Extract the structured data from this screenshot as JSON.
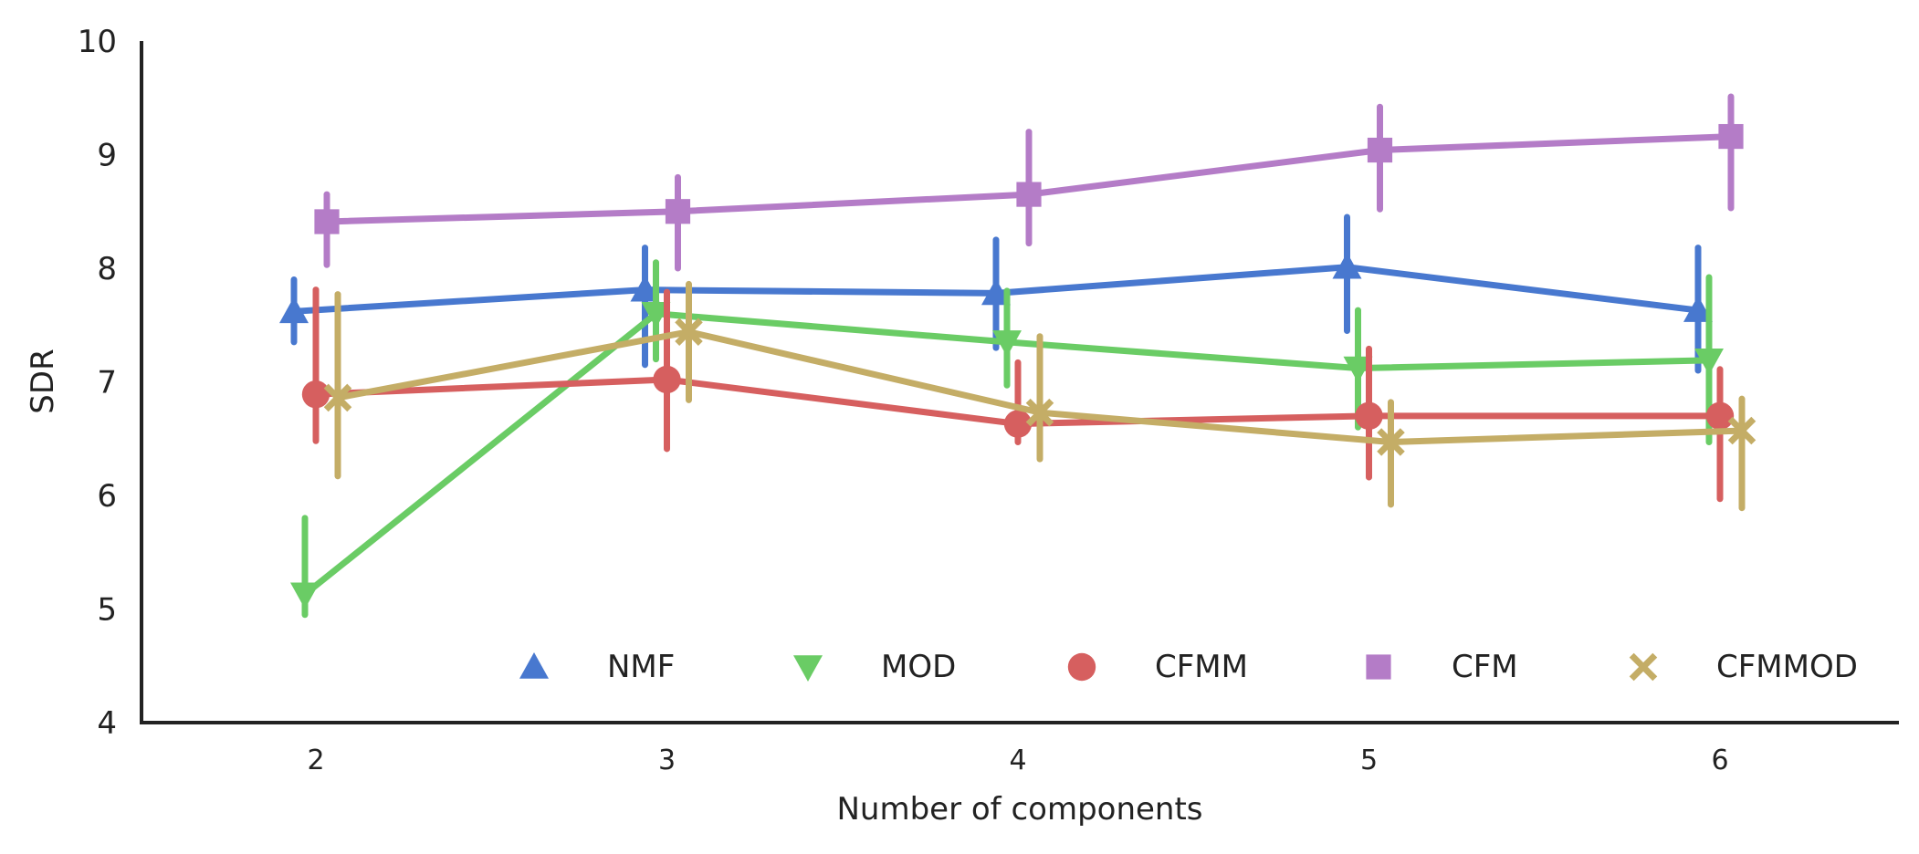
{
  "chart_data": {
    "type": "line",
    "xlabel": "Number of components",
    "ylabel": "SDR",
    "x": [
      2,
      3,
      4,
      5,
      6
    ],
    "ylim": [
      4,
      10
    ],
    "yticks": [
      4,
      5,
      6,
      7,
      8,
      9,
      10
    ],
    "grid": false,
    "legend_position": "bottom-right",
    "series": [
      {
        "name": "NMF",
        "marker": "triangle-up",
        "color": "#4878cf",
        "values": [
          7.62,
          7.81,
          7.78,
          8.01,
          7.63
        ],
        "err_low": [
          7.35,
          7.15,
          7.3,
          7.45,
          7.1
        ],
        "err_high": [
          7.9,
          8.18,
          8.25,
          8.45,
          8.18
        ]
      },
      {
        "name": "MOD",
        "marker": "triangle-down",
        "color": "#6acc65",
        "values": [
          5.13,
          7.6,
          7.35,
          7.12,
          7.19
        ],
        "err_low": [
          4.95,
          7.2,
          6.97,
          6.6,
          6.47
        ],
        "err_high": [
          5.8,
          8.05,
          7.8,
          7.63,
          7.92
        ]
      },
      {
        "name": "CFMM",
        "marker": "circle",
        "color": "#d65f5f",
        "values": [
          6.89,
          7.02,
          6.63,
          6.7,
          6.7
        ],
        "err_low": [
          6.48,
          6.41,
          6.47,
          6.16,
          5.97
        ],
        "err_high": [
          7.81,
          7.79,
          7.17,
          7.29,
          7.11
        ]
      },
      {
        "name": "CFM",
        "marker": "square",
        "color": "#b47cc7",
        "values": [
          8.41,
          8.5,
          8.65,
          9.04,
          9.16
        ],
        "err_low": [
          8.03,
          8.0,
          8.22,
          8.52,
          8.53
        ],
        "err_high": [
          8.65,
          8.8,
          9.2,
          9.42,
          9.51
        ]
      },
      {
        "name": "CFMMOD",
        "marker": "x",
        "color": "#c4ad66",
        "values": [
          6.86,
          7.44,
          6.73,
          6.47,
          6.57
        ],
        "err_low": [
          6.17,
          6.84,
          6.32,
          5.92,
          5.89
        ],
        "err_high": [
          7.77,
          7.86,
          7.4,
          6.82,
          6.85
        ]
      }
    ]
  }
}
